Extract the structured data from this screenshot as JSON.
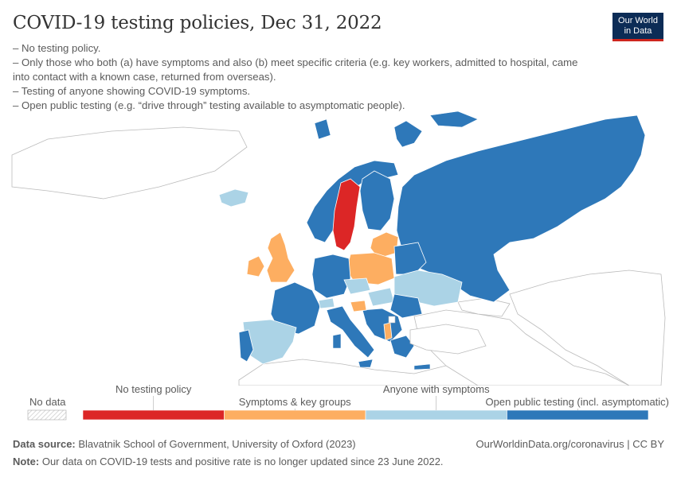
{
  "header": {
    "title": "COVID-19 testing policies, Dec 31, 2022",
    "subtitle_lines": [
      "– No testing policy.",
      "– Only those who both (a) have symptoms and also (b) meet specific criteria (e.g. key workers, admitted to hospital, came into contact with a known case, returned from overseas).",
      "– Testing of anyone showing COVID-19 symptoms.",
      "– Open public testing (e.g. “drive through” testing available to asymptomatic people)."
    ]
  },
  "logo": {
    "line1": "Our World",
    "line2": "in Data"
  },
  "colors": {
    "no_policy": "#dc2626",
    "symptoms_key_groups": "#fdae61",
    "anyone_symptoms": "#abd3e6",
    "open_public": "#2e78b9",
    "no_data": "#ffffff",
    "border": "#ffffff",
    "outline": "#bbbbbb"
  },
  "legend": {
    "no_data_label": "No data",
    "categories": [
      {
        "label": "No testing policy",
        "color": "#dc2626"
      },
      {
        "label": "Symptoms & key groups",
        "color": "#fdae61"
      },
      {
        "label": "Anyone with symptoms",
        "color": "#abd3e6"
      },
      {
        "label": "Open public testing (incl. asymptomatic)",
        "color": "#2e78b9"
      }
    ]
  },
  "footer": {
    "source_label": "Data source:",
    "source_text": "Blavatnik School of Government, University of Oxford (2023)",
    "url": "OurWorldinData.org/coronavirus | CC BY",
    "note_label": "Note:",
    "note_text": "Our data on COVID-19 tests and positive rate is no longer updated since 23 June 2022."
  }
}
